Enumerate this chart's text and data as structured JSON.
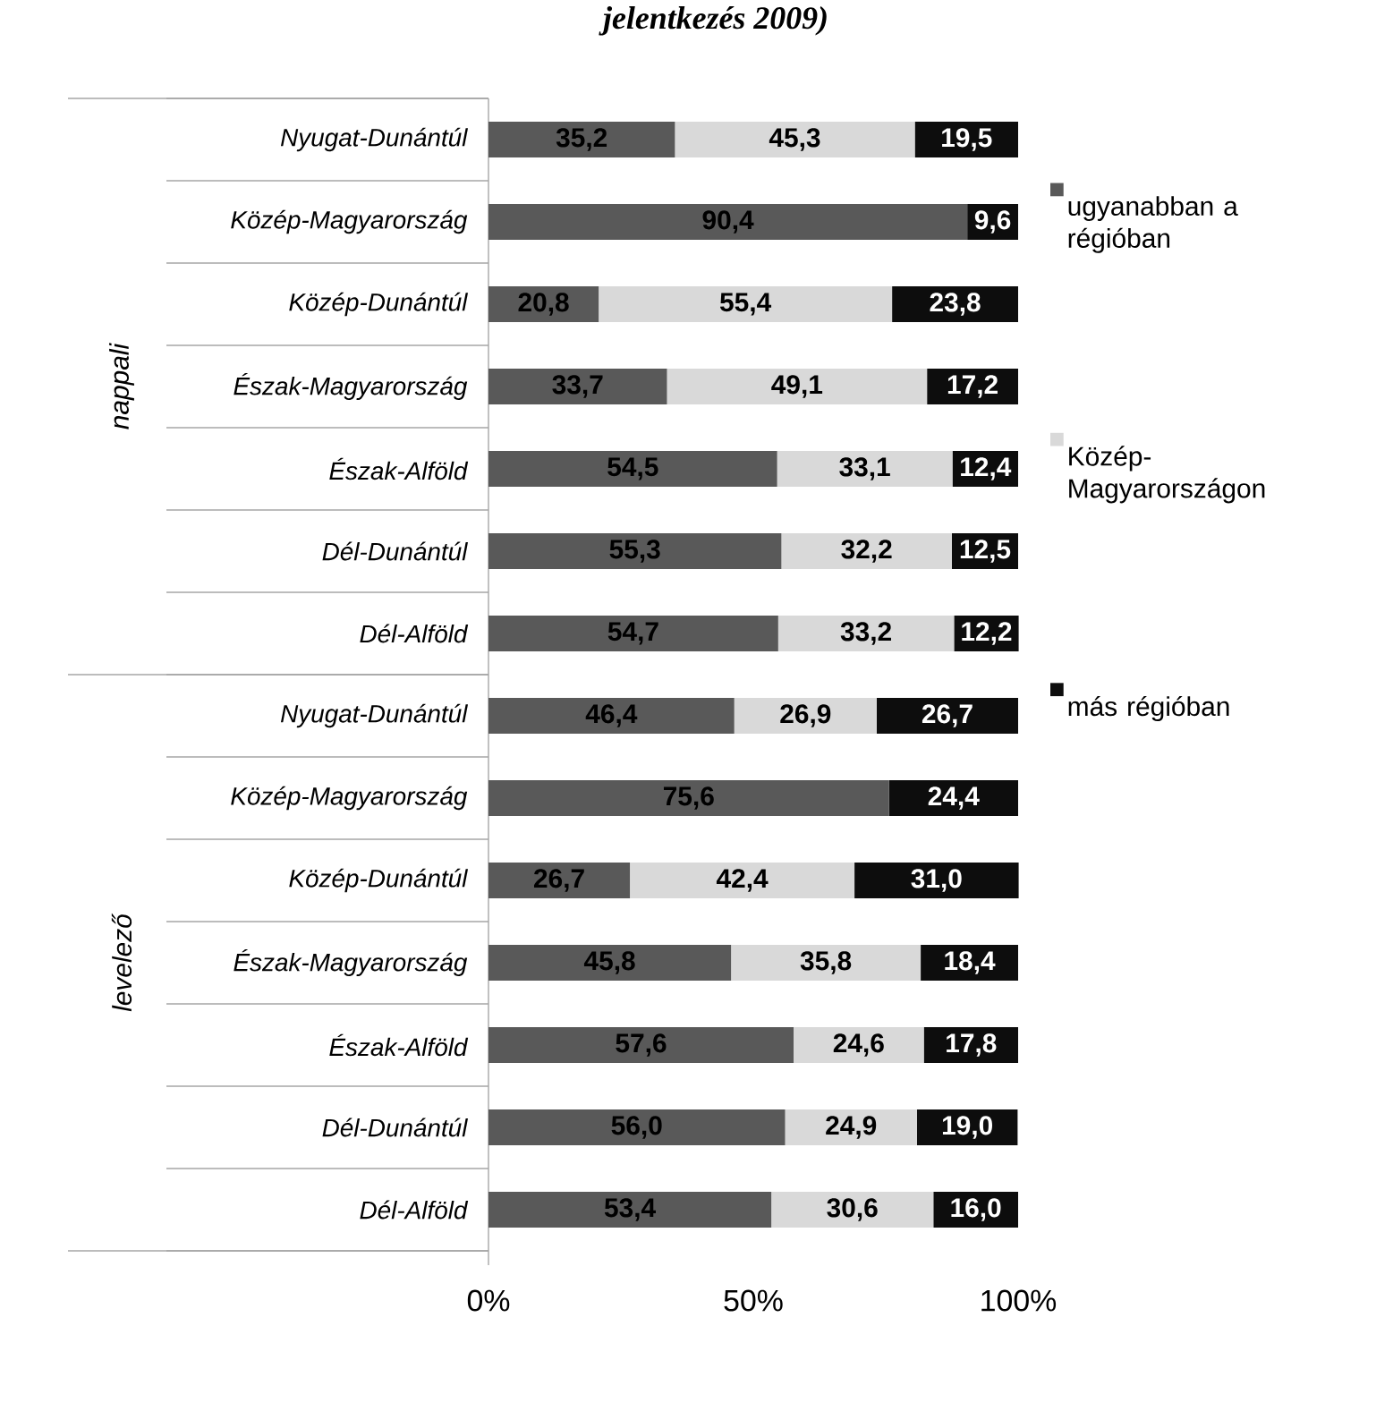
{
  "chart_data": {
    "type": "bar",
    "orientation": "horizontal",
    "stacked": true,
    "title": "jelentkezés 2009)",
    "categories": [
      "Nyugat-Dunántúl",
      "Közép-Magyarország",
      "Közép-Dunántúl",
      "Észak-Magyarország",
      "Észak-Alföld",
      "Dél-Dunántúl",
      "Dél-Alföld",
      "Nyugat-Dunántúl",
      "Közép-Magyarország",
      "Közép-Dunántúl",
      "Észak-Magyarország",
      "Észak-Alföld",
      "Dél-Dunántúl",
      "Dél-Alföld"
    ],
    "series": [
      {
        "name": "ugyanabban a régióban",
        "color": "#595959",
        "values": [
          35.2,
          90.4,
          20.8,
          33.7,
          54.5,
          55.3,
          54.7,
          46.4,
          75.6,
          26.7,
          45.8,
          57.6,
          56.0,
          53.4
        ],
        "value_labels": [
          "35,2",
          "90,4",
          "20,8",
          "33,7",
          "54,5",
          "55,3",
          "54,7",
          "46,4",
          "75,6",
          "26,7",
          "45,8",
          "57,6",
          "56,0",
          "53,4"
        ]
      },
      {
        "name": "Közép-Magyarországon",
        "color": "#d9d9d9",
        "values": [
          45.3,
          null,
          55.4,
          49.1,
          33.1,
          32.2,
          33.2,
          26.9,
          null,
          42.4,
          35.8,
          24.6,
          24.9,
          30.6
        ],
        "value_labels": [
          "45,3",
          null,
          "55,4",
          "49,1",
          "33,1",
          "32,2",
          "33,2",
          "26,9",
          null,
          "42,4",
          "35,8",
          "24,6",
          "24,9",
          "30,6"
        ]
      },
      {
        "name": "más régióban",
        "color": "#0d0d0d",
        "values": [
          19.5,
          9.6,
          23.8,
          17.2,
          12.4,
          12.5,
          12.2,
          26.7,
          24.4,
          31.0,
          18.4,
          17.8,
          19.0,
          16.0
        ],
        "value_labels": [
          "19,5",
          "9,6",
          "23,8",
          "17,2",
          "12,4",
          "12,5",
          "12,2",
          "26,7",
          "24,4",
          "31,0",
          "18,4",
          "17,8",
          "19,0",
          "16,0"
        ]
      }
    ],
    "annotations": [
      "nappali",
      "levelező"
    ],
    "xlim": [
      0,
      100
    ],
    "xticks": [
      {
        "value": 0,
        "label": "0%"
      },
      {
        "value": 50,
        "label": "50%"
      },
      {
        "value": 100,
        "label": "100%"
      }
    ],
    "legend": "right"
  }
}
